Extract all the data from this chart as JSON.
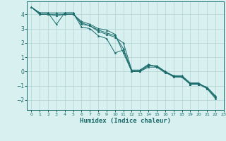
{
  "xlabel": "Humidex (Indice chaleur)",
  "bg_color": "#d9f0f0",
  "grid_color": "#b8d8d8",
  "line_color": "#1a6b6b",
  "xlim": [
    -0.5,
    23
  ],
  "ylim": [
    -2.7,
    4.9
  ],
  "yticks": [
    -2,
    -1,
    0,
    1,
    2,
    3,
    4
  ],
  "xticks": [
    0,
    1,
    2,
    3,
    4,
    5,
    6,
    7,
    8,
    9,
    10,
    11,
    12,
    13,
    14,
    15,
    16,
    17,
    18,
    19,
    20,
    21,
    22,
    23
  ],
  "series": [
    {
      "x": [
        0,
        1,
        2,
        3,
        4,
        5,
        6,
        7,
        8,
        9,
        10,
        11,
        12,
        13,
        14,
        15,
        16,
        17,
        18,
        19,
        20,
        21,
        22
      ],
      "y": [
        4.5,
        4.1,
        4.1,
        3.3,
        4.1,
        4.1,
        3.1,
        3.0,
        2.5,
        2.3,
        1.3,
        1.5,
        0.0,
        0.0,
        0.4,
        0.4,
        0.0,
        -0.3,
        -0.3,
        -0.8,
        -0.8,
        -1.2,
        -1.8
      ]
    },
    {
      "x": [
        0,
        1,
        2,
        3,
        4,
        5,
        6,
        7,
        8,
        9,
        10,
        11,
        12,
        13,
        14,
        15,
        16,
        17,
        18,
        19,
        20,
        21,
        22
      ],
      "y": [
        4.5,
        4.1,
        4.1,
        4.1,
        4.1,
        4.1,
        3.3,
        3.2,
        2.8,
        2.6,
        2.4,
        2.0,
        0.1,
        0.1,
        0.5,
        0.3,
        -0.1,
        -0.3,
        -0.4,
        -0.9,
        -0.9,
        -1.1,
        -1.7
      ]
    },
    {
      "x": [
        0,
        1,
        2,
        3,
        4,
        5,
        6,
        7,
        8,
        9,
        10,
        11,
        12,
        13,
        14,
        15,
        16,
        17,
        18,
        19,
        20,
        21,
        22
      ],
      "y": [
        4.5,
        4.0,
        4.0,
        4.0,
        4.0,
        4.0,
        3.5,
        3.3,
        3.0,
        2.9,
        2.6,
        1.3,
        0.0,
        0.0,
        0.3,
        0.3,
        0.0,
        -0.4,
        -0.4,
        -0.9,
        -0.9,
        -1.2,
        -1.9
      ]
    },
    {
      "x": [
        0,
        1,
        2,
        3,
        4,
        5,
        6,
        7,
        8,
        9,
        10,
        11,
        12,
        13,
        14,
        15,
        16,
        17,
        18,
        19,
        20,
        21,
        22
      ],
      "y": [
        4.5,
        4.0,
        4.0,
        3.9,
        4.0,
        4.0,
        3.4,
        3.2,
        2.9,
        2.7,
        2.5,
        1.6,
        0.05,
        0.05,
        0.45,
        0.35,
        -0.05,
        -0.35,
        -0.35,
        -0.85,
        -0.85,
        -1.15,
        -1.75
      ]
    }
  ]
}
